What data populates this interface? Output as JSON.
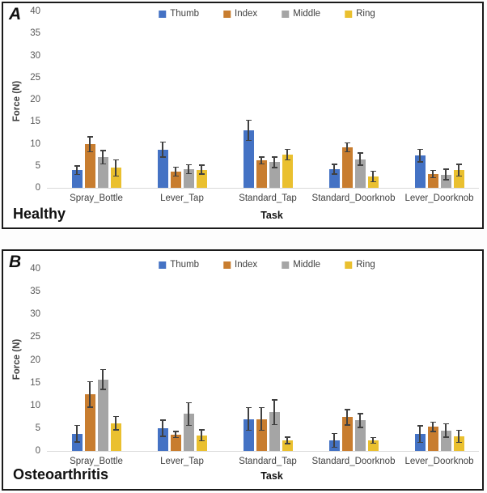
{
  "figure": {
    "legend_labels": [
      "Thumb",
      "Index",
      "Middle",
      "Ring"
    ],
    "colors": {
      "thumb": "#4472C4",
      "index": "#C87D2F",
      "middle": "#A5A5A5",
      "ring": "#EAC02F",
      "error_bar": "#404040",
      "baseline": "#D9D9D9",
      "tick_text": "#595959"
    }
  },
  "chart_data": [
    {
      "type": "bar",
      "panel_label": "A",
      "group_name": "Healthy",
      "xlabel": "Task",
      "ylabel": "Force (N)",
      "ylim": [
        0,
        40
      ],
      "ytick_step": 5,
      "grid": false,
      "legend_position": "top-center",
      "categories": [
        "Spray_Bottle",
        "Lever_Tap",
        "Standard_Tap",
        "Standard_Doorknob",
        "Lever_Doorknob"
      ],
      "series": [
        {
          "name": "Thumb",
          "color": "#4472C4",
          "values": [
            4.0,
            8.7,
            13.0,
            4.2,
            7.3
          ],
          "errors": [
            1.0,
            1.7,
            2.3,
            1.1,
            1.4
          ]
        },
        {
          "name": "Index",
          "color": "#C87D2F",
          "values": [
            9.9,
            3.7,
            6.2,
            9.2,
            3.1
          ],
          "errors": [
            1.7,
            1.0,
            0.8,
            1.0,
            0.8
          ]
        },
        {
          "name": "Middle",
          "color": "#A5A5A5",
          "values": [
            6.9,
            4.2,
            5.8,
            6.5,
            3.0
          ],
          "errors": [
            1.5,
            1.0,
            1.2,
            1.4,
            1.2
          ]
        },
        {
          "name": "Ring",
          "color": "#EAC02F",
          "values": [
            4.5,
            4.1,
            7.5,
            2.6,
            4.0
          ],
          "errors": [
            1.8,
            1.0,
            1.2,
            1.2,
            1.3
          ]
        }
      ]
    },
    {
      "type": "bar",
      "panel_label": "B",
      "group_name": "Osteoarthritis",
      "xlabel": "Task",
      "ylabel": "Force (N)",
      "ylim": [
        0,
        40
      ],
      "ytick_step": 5,
      "grid": false,
      "legend_position": "top-center",
      "categories": [
        "Spray_Bottle",
        "Lever_Tap",
        "Standard_Tap",
        "Standard_Doorknob",
        "Lever_Doorknob"
      ],
      "series": [
        {
          "name": "Thumb",
          "color": "#4472C4",
          "values": [
            3.8,
            5.0,
            7.0,
            2.3,
            3.7
          ],
          "errors": [
            1.8,
            1.8,
            2.5,
            1.5,
            1.8
          ]
        },
        {
          "name": "Index",
          "color": "#C87D2F",
          "values": [
            12.4,
            3.6,
            7.0,
            7.4,
            5.3
          ],
          "errors": [
            2.8,
            0.7,
            2.5,
            1.7,
            1.0
          ]
        },
        {
          "name": "Middle",
          "color": "#A5A5A5",
          "values": [
            15.7,
            8.1,
            8.5,
            6.7,
            4.5
          ],
          "errors": [
            2.2,
            2.5,
            2.7,
            1.5,
            1.5
          ]
        },
        {
          "name": "Ring",
          "color": "#EAC02F",
          "values": [
            6.1,
            3.4,
            2.3,
            2.3,
            3.2
          ],
          "errors": [
            1.5,
            1.2,
            0.7,
            0.6,
            1.3
          ]
        }
      ]
    }
  ]
}
